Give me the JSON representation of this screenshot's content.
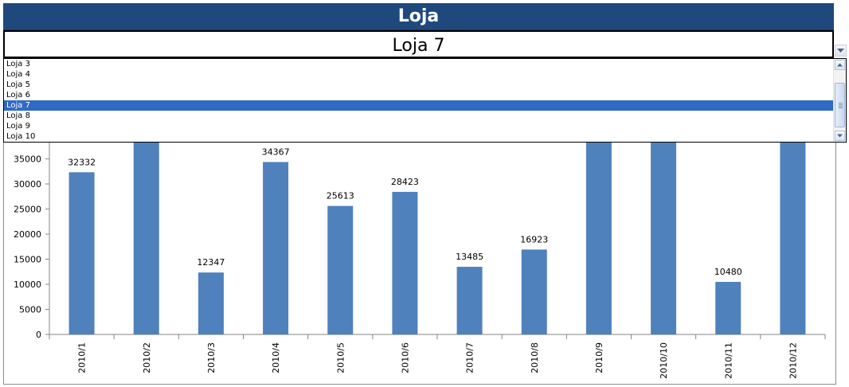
{
  "header": {
    "title": "Loja"
  },
  "combo": {
    "selected": "Loja 7"
  },
  "dropdown": {
    "options": [
      "Loja 3",
      "Loja 4",
      "Loja 5",
      "Loja 6",
      "Loja 7",
      "Loja 8",
      "Loja 9",
      "Loja 10"
    ],
    "selected_index": 4
  },
  "colors": {
    "header_bg": "#1f497d",
    "bar": "#4f81bd",
    "selection": "#316ac5"
  },
  "chart_data": {
    "type": "bar",
    "categories": [
      "2010/1",
      "2010/2",
      "2010/3",
      "2010/4",
      "2010/5",
      "2010/6",
      "2010/7",
      "2010/8",
      "2010/9",
      "2010/10",
      "2010/11",
      "2010/12"
    ],
    "values": [
      32332,
      null,
      12347,
      34367,
      25613,
      28423,
      13485,
      16923,
      null,
      null,
      10480,
      null
    ],
    "data_labels": [
      "32332",
      "",
      "12347",
      "34367",
      "25613",
      "28423",
      "13485",
      "16923",
      "",
      "",
      "10480",
      ""
    ],
    "yticks": [
      0,
      5000,
      10000,
      15000,
      20000,
      25000,
      30000,
      35000
    ],
    "ylim": [
      0,
      40000
    ],
    "grid": false,
    "legend": "none"
  }
}
